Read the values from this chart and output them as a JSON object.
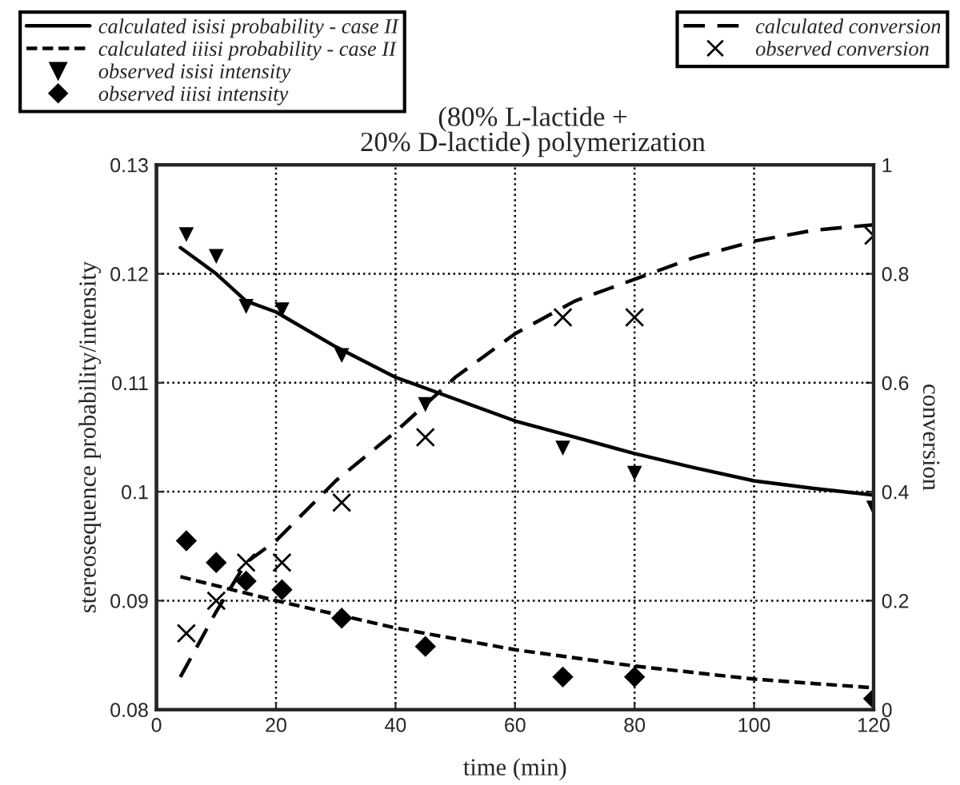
{
  "chart_data": {
    "type": "line",
    "title": "(80% L-lactide +\n20% D-lactide) polymerization",
    "xlabel": "time (min)",
    "ylabel": "stereosequence probability/intensity",
    "y2label": "conversion",
    "xlim": [
      0,
      120
    ],
    "xticks": [
      0,
      20,
      40,
      60,
      80,
      100,
      120
    ],
    "ylim": [
      0.08,
      0.13
    ],
    "yticks": [
      {
        "value": 0.08,
        "label": "0.08"
      },
      {
        "value": 0.09,
        "label": "0.09"
      },
      {
        "value": 0.1,
        "label": "0.1"
      },
      {
        "value": 0.11,
        "label": "0.11"
      },
      {
        "value": 0.12,
        "label": "0.12"
      },
      {
        "value": 0.13,
        "label": "0.13"
      }
    ],
    "y2lim": [
      0,
      1
    ],
    "y2ticks": [
      0,
      {
        "value": 0.2,
        "label": "0.2"
      },
      {
        "value": 0.4,
        "label": "0.4"
      },
      {
        "value": 0.6,
        "label": "0.6"
      },
      {
        "value": 0.8,
        "label": "0.8"
      },
      1
    ],
    "grid": true,
    "legend": "top left",
    "series": [
      {
        "name": "calculated isisi probability - case II",
        "line_style": "solid",
        "color": "#000000",
        "x": [
          4,
          10,
          15,
          20,
          30,
          40,
          50,
          60,
          70,
          80,
          90,
          100,
          110,
          120
        ],
        "values": [
          0.1224,
          0.12,
          0.1175,
          0.1165,
          0.1133,
          0.1105,
          0.1085,
          0.1065,
          0.105,
          0.1035,
          0.1022,
          0.101,
          0.1003,
          0.0997
        ]
      },
      {
        "name": "calculated iiisi probability - case II",
        "line_style": "dotted",
        "color": "#000000",
        "x": [
          4,
          20,
          40,
          60,
          80,
          100,
          120
        ],
        "values": [
          0.0922,
          0.09,
          0.0875,
          0.0855,
          0.084,
          0.0828,
          0.082
        ]
      },
      {
        "name": "observed isisi intensity",
        "type": "scatter",
        "marker": "triangle",
        "color": "#000000",
        "x": [
          5,
          10,
          15,
          21,
          31,
          45,
          68,
          80,
          120
        ],
        "values": [
          0.1236,
          0.1216,
          0.117,
          0.1167,
          0.1125,
          0.108,
          0.104,
          0.1017,
          0.0985
        ]
      },
      {
        "name": "observed iiisi intensity",
        "type": "scatter",
        "marker": "diamond",
        "color": "#000000",
        "x": [
          5,
          10,
          15,
          21,
          31,
          45,
          68,
          80,
          120
        ],
        "values": [
          0.0955,
          0.0935,
          0.0918,
          0.091,
          0.0884,
          0.0858,
          0.083,
          0.083,
          0.081
        ]
      },
      {
        "name": "calculated conversion",
        "line_style": "dashed",
        "axis": "y2",
        "color": "#000000",
        "x": [
          4,
          10,
          15,
          20,
          30,
          40,
          50,
          60,
          70,
          80,
          90,
          100,
          110,
          120
        ],
        "values": [
          0.06,
          0.18,
          0.27,
          0.31,
          0.42,
          0.51,
          0.61,
          0.69,
          0.75,
          0.79,
          0.83,
          0.86,
          0.88,
          0.89
        ]
      },
      {
        "name": "observed conversion",
        "type": "scatter",
        "marker": "cross",
        "axis": "y2",
        "color": "#000000",
        "x": [
          5,
          10,
          15,
          21,
          31,
          45,
          68,
          80,
          120
        ],
        "values": [
          0.14,
          0.2,
          0.27,
          0.27,
          0.38,
          0.5,
          0.72,
          0.72,
          0.87
        ]
      }
    ]
  }
}
